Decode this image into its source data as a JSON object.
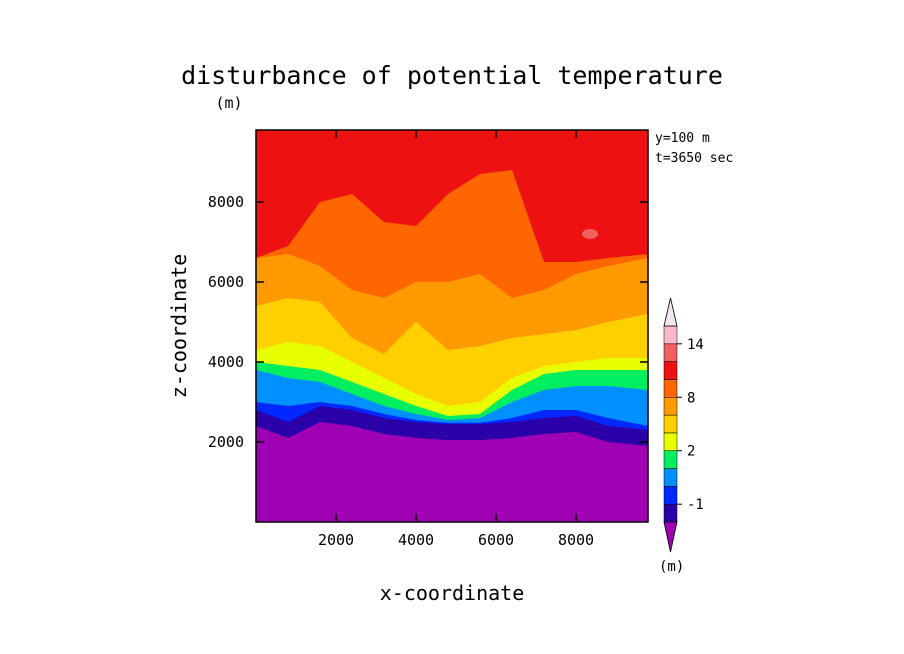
{
  "chart_data": {
    "type": "heatmap",
    "title": "disturbance of potential temperature",
    "title_unit": "(m)",
    "xlabel": "x-coordinate",
    "ylabel": "z-coordinate",
    "xlim": [
      0,
      9800
    ],
    "ylim": [
      0,
      9800
    ],
    "xticks": [
      2000,
      4000,
      6000,
      8000
    ],
    "yticks": [
      2000,
      4000,
      6000,
      8000
    ],
    "annotations": [
      "y=100 m",
      "t=3650 sec"
    ],
    "colorbar": {
      "levels": [
        -2,
        -1,
        0,
        1,
        2,
        4,
        6,
        8,
        10,
        12,
        14,
        16
      ],
      "labels": [
        {
          "value": -1,
          "text": "-1"
        },
        {
          "value": 2,
          "text": "2"
        },
        {
          "value": 8,
          "text": "8"
        },
        {
          "value": 14,
          "text": "14"
        }
      ],
      "colors": [
        "#a000b4",
        "#2a00a8",
        "#0028ff",
        "#0090ff",
        "#00ee60",
        "#e8ff00",
        "#ffd000",
        "#ff9a00",
        "#ff6600",
        "#ee1111",
        "#f06060",
        "#ffb8c8",
        "#f0e8f0"
      ],
      "unit": "(m)"
    },
    "fields": [
      {
        "level": "-1",
        "color": "#2a00a8",
        "boundary_z": [
          2800,
          2500,
          2900,
          2800,
          2600,
          2500,
          2450,
          2450,
          2500,
          2600,
          2650,
          2400,
          2300
        ]
      },
      {
        "level": "0",
        "color": "#0028ff",
        "boundary_z": [
          3000,
          2900,
          3000,
          2900,
          2700,
          2550,
          2480,
          2480,
          2600,
          2800,
          2800,
          2600,
          2400
        ]
      },
      {
        "level": "1",
        "color": "#0090ff",
        "boundary_z": [
          3800,
          3600,
          3500,
          3200,
          2900,
          2700,
          2550,
          2600,
          3000,
          3300,
          3400,
          3400,
          3300
        ]
      },
      {
        "level": "2",
        "color": "#00ee60",
        "boundary_z": [
          4000,
          3900,
          3800,
          3500,
          3200,
          2900,
          2650,
          2700,
          3300,
          3700,
          3800,
          3800,
          3800
        ]
      },
      {
        "level": "4",
        "color": "#e8ff00",
        "boundary_z": [
          4300,
          4500,
          4400,
          4000,
          3600,
          3200,
          2900,
          3000,
          3600,
          3900,
          4000,
          4100,
          4100
        ]
      },
      {
        "level": "6",
        "color": "#ffd000",
        "boundary_z": [
          5400,
          5600,
          5500,
          4600,
          4200,
          5000,
          4300,
          4400,
          4600,
          4700,
          4800,
          5000,
          5200
        ]
      },
      {
        "level": "8",
        "color": "#ff9a00",
        "boundary_z": [
          6600,
          6700,
          6400,
          5800,
          5600,
          6000,
          6000,
          6200,
          5600,
          5800,
          6200,
          6400,
          6600
        ]
      },
      {
        "level": "10",
        "color": "#ff6600",
        "boundary_z": [
          6600,
          6900,
          8000,
          8200,
          7500,
          7400,
          8200,
          8700,
          8800,
          6500,
          6500,
          6600,
          6700
        ]
      },
      {
        "level": "12",
        "color": "#ee1111",
        "boundary_z": [
          9800,
          9800,
          9800,
          9800,
          9800,
          9800,
          9800,
          9800,
          9800,
          9800,
          9800,
          9800,
          9800
        ]
      }
    ],
    "sample_x": [
      0,
      800,
      1600,
      2400,
      3200,
      4000,
      4800,
      5600,
      6400,
      7200,
      8000,
      8800,
      9800
    ],
    "hotspot": {
      "level": "14",
      "x": 8350,
      "z": 7200,
      "color": "#f06060"
    }
  }
}
